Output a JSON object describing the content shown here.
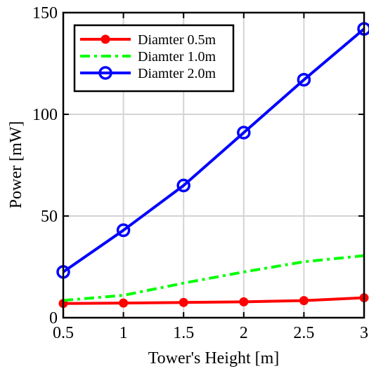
{
  "chart_data": {
    "type": "line",
    "title": "",
    "xlabel": "Tower's Height [m]",
    "ylabel": "Power [mW]",
    "xlim": [
      0.5,
      3
    ],
    "ylim": [
      0,
      150
    ],
    "xticks": [
      0.5,
      1,
      1.5,
      2,
      2.5,
      3
    ],
    "xtick_labels": [
      "0.5",
      "1",
      "1.5",
      "2",
      "2.5",
      "3"
    ],
    "yticks": [
      0,
      50,
      100,
      150
    ],
    "ytick_labels": [
      "0",
      "50",
      "100",
      "150"
    ],
    "grid": true,
    "legend_position": "top-left",
    "x": [
      0.5,
      1,
      1.5,
      2,
      2.5,
      3
    ],
    "series": [
      {
        "name": "Diamter 0.5m",
        "color": "#ff0000",
        "line_style": "solid",
        "marker": "filled-circle",
        "values": [
          7,
          7.2,
          7.5,
          7.8,
          8.4,
          9.8
        ]
      },
      {
        "name": "Diamter 1.0m",
        "color": "#00ff00",
        "line_style": "dash-dot",
        "marker": "none",
        "values": [
          8.5,
          11,
          17,
          22.5,
          27.5,
          30.5
        ]
      },
      {
        "name": "Diamter 2.0m",
        "color": "#0000ff",
        "line_style": "solid",
        "marker": "open-circle",
        "values": [
          22.5,
          43,
          65,
          91,
          117,
          142
        ]
      }
    ]
  }
}
